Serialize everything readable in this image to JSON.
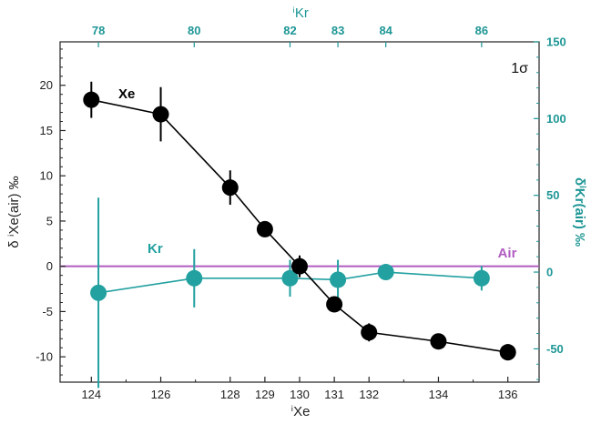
{
  "chart_data": {
    "type": "scatter",
    "bottom_axis": {
      "label": "ⁱXe",
      "ticks": [
        124,
        126,
        128,
        129,
        130,
        131,
        132,
        134,
        136
      ],
      "range": [
        123.1,
        136.9
      ]
    },
    "top_axis": {
      "label": "ⁱKr",
      "ticks": [
        78,
        80,
        82,
        83,
        84,
        86
      ],
      "range": [
        77.2,
        87.2
      ]
    },
    "left_axis": {
      "label": "δ ⁱXe(air) ‰",
      "ticks": [
        20,
        15,
        10,
        5,
        0,
        -5,
        -10
      ],
      "range": [
        -12.8,
        24.8
      ]
    },
    "right_axis": {
      "label": "δⁱKr(air) ‰",
      "ticks": [
        150,
        100,
        50,
        0,
        -50
      ],
      "range": [
        -71.7,
        150
      ]
    },
    "annotation": "1σ",
    "reference_line": {
      "label": "Air",
      "value": 0,
      "color": "#b05cc0"
    },
    "series": [
      {
        "name": "Xe",
        "axis": "left",
        "color": "#000000",
        "points": [
          {
            "x": 124,
            "y": 18.4,
            "err": 2.0
          },
          {
            "x": 126,
            "y": 16.8,
            "err": 3.0
          },
          {
            "x": 128,
            "y": 8.7,
            "err": 1.9
          },
          {
            "x": 129,
            "y": 4.1,
            "err": 0.7
          },
          {
            "x": 130,
            "y": 0.0,
            "err": 1.2
          },
          {
            "x": 131,
            "y": -4.2,
            "err": 0.7
          },
          {
            "x": 132,
            "y": -7.3,
            "err": 1.0
          },
          {
            "x": 134,
            "y": -8.3,
            "err": 0.7
          },
          {
            "x": 136,
            "y": -9.5,
            "err": 0.9
          }
        ]
      },
      {
        "name": "Kr",
        "axis": "right",
        "color": "#23a0a0",
        "points": [
          {
            "x": 78,
            "y": -13.5,
            "err": 62
          },
          {
            "x": 80,
            "y": -4.0,
            "err": 19
          },
          {
            "x": 82,
            "y": -4.0,
            "err": 12
          },
          {
            "x": 83,
            "y": -5.0,
            "err": 13
          },
          {
            "x": 84,
            "y": 0.0,
            "err": 2
          },
          {
            "x": 86,
            "y": -4.0,
            "err": 8
          }
        ]
      }
    ]
  }
}
